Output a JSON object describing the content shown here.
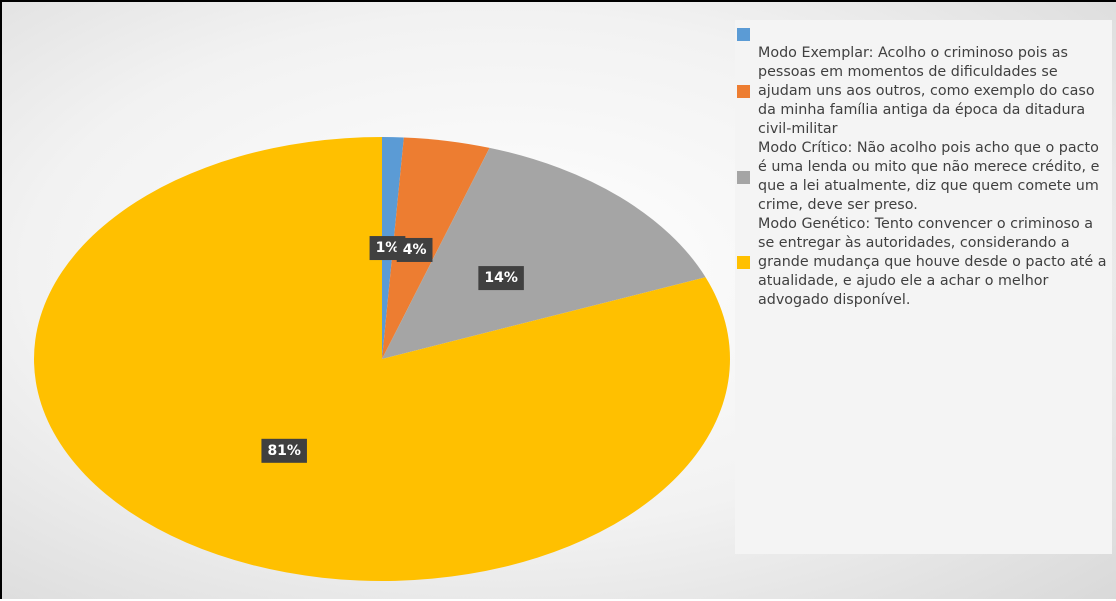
{
  "chart_data": {
    "type": "pie",
    "series": [
      {
        "names": [
          null,
          "Modo Exemplar:  Acolho o criminoso pois as pessoas em momentos de dificuldades se ajudam uns aos outros, como exemplo do caso da minha família antiga da época da ditadura civil-militar",
          "Modo Crítico: Não acolho pois acho que o pacto é uma lenda ou mito que não merece crédito, e que a lei atualmente, diz que quem comete um crime, deve ser preso.",
          "Modo Genético: Tento convencer o criminoso a se entregar às autoridades, considerando a grande mudança que houve desde o pacto até a atualidade, e ajudo ele a achar o melhor advogado disponível."
        ],
        "colors": [
          "#5b9bd5",
          "#ed7d31",
          "#a5a5a5",
          "#ffc000"
        ],
        "values": [
          1,
          4,
          14,
          81
        ],
        "value_labels": [
          "1%",
          "4%",
          "14%",
          "81%"
        ]
      }
    ],
    "legend": "right"
  }
}
